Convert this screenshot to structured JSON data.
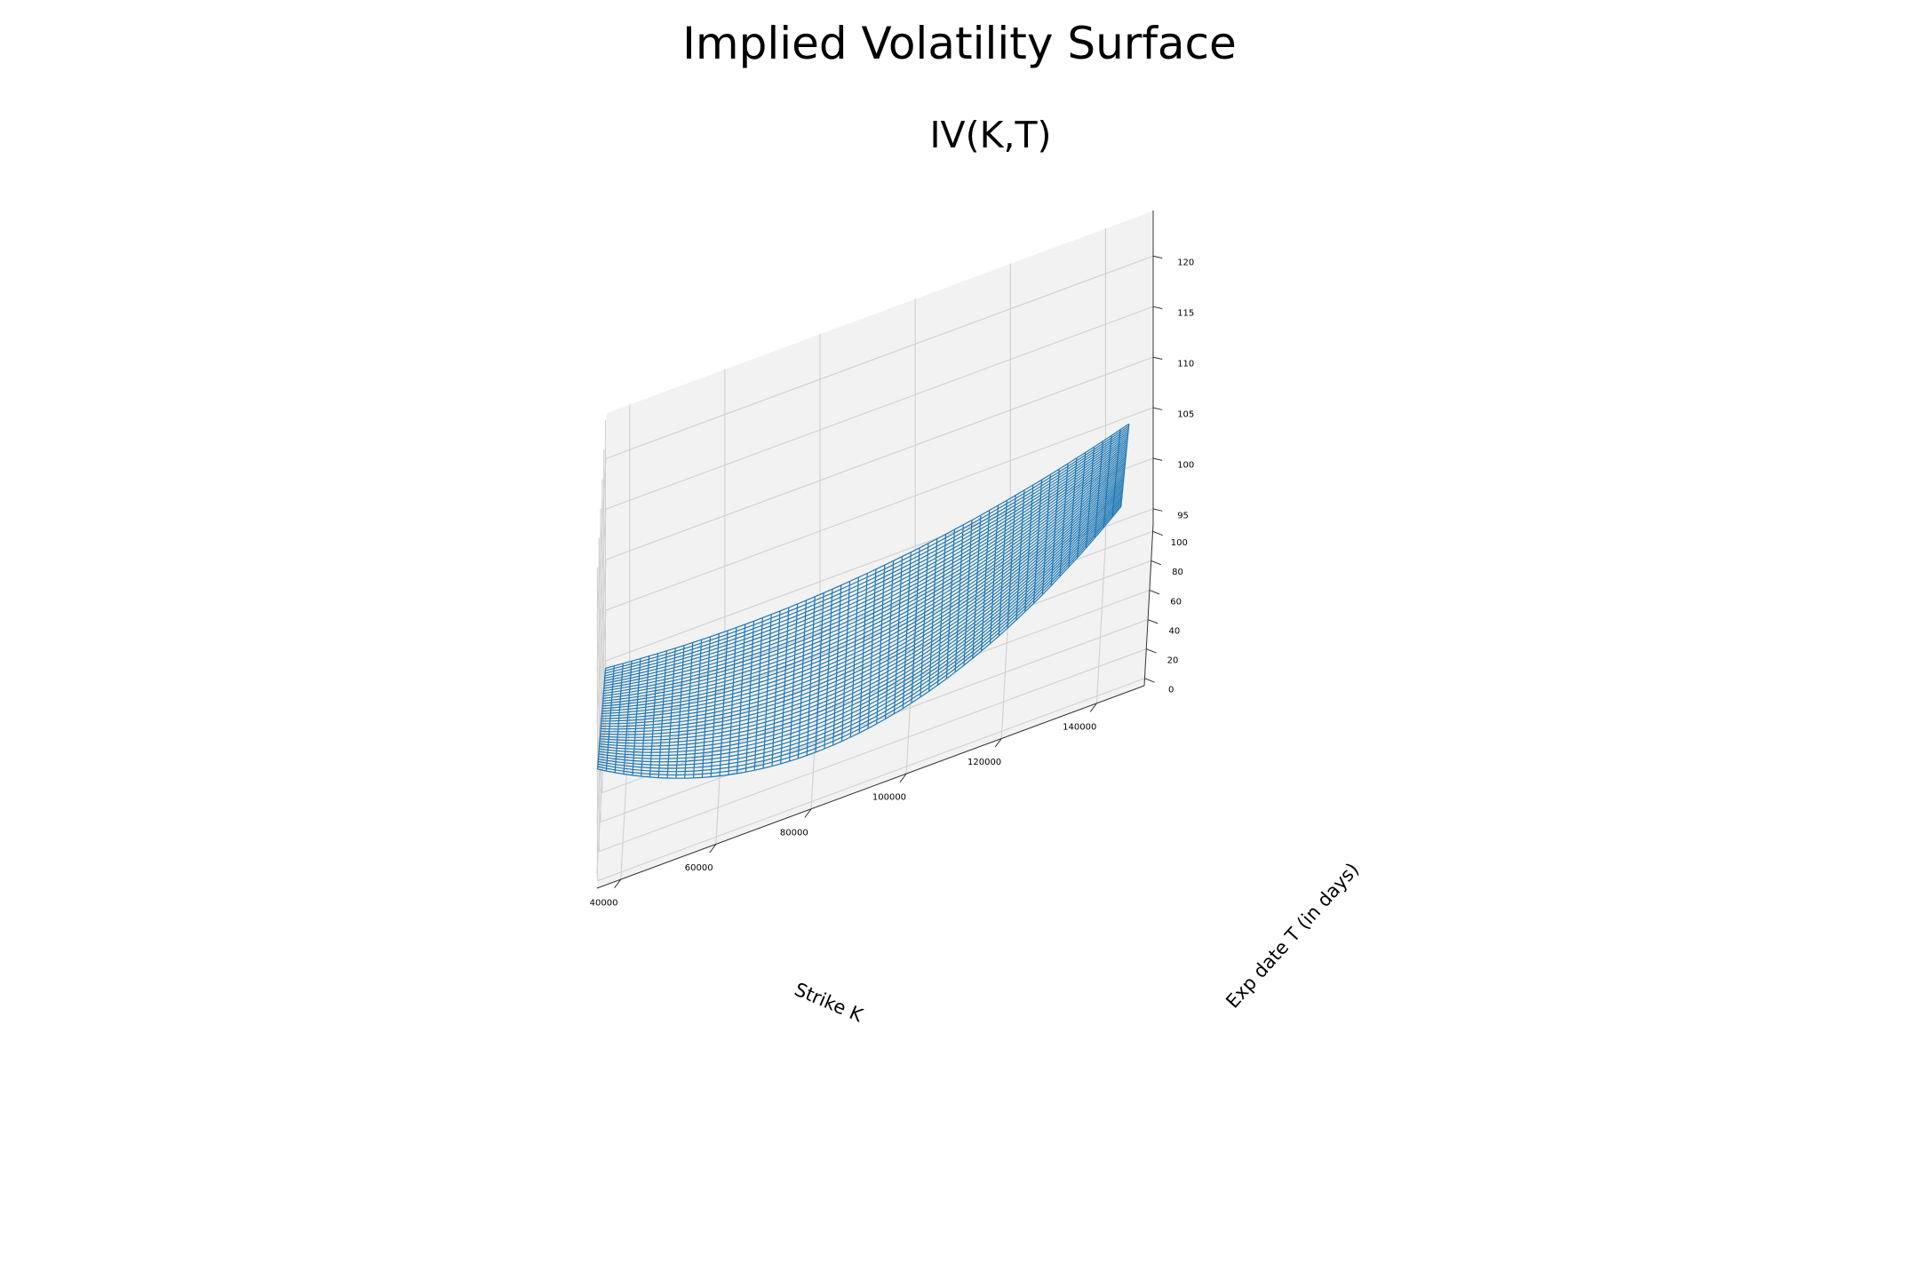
{
  "title": "Implied Volatility Surface",
  "chart_data": {
    "type": "surface",
    "title": "IV(K,T)",
    "xlabel": "Strike K",
    "ylabel": "Exp date T (in days)",
    "zlabel": "",
    "xlim": [
      35000,
      150000
    ],
    "ylim": [
      -5,
      105
    ],
    "zlim": [
      93.5,
      124.5
    ],
    "xticks": [
      "40000",
      "60000",
      "80000",
      "100000",
      "120000",
      "140000"
    ],
    "yticks": [
      "0",
      "20",
      "40",
      "60",
      "80",
      "100"
    ],
    "zticks": [
      "95",
      "100",
      "105",
      "110",
      "115",
      "120"
    ],
    "grid": true,
    "series": [
      {
        "style": "wireframe",
        "color": "#1f77b4",
        "x_range": [
          35000,
          145000
        ],
        "y_range": [
          1,
          100
        ],
        "samples": [
          {
            "x": 35000,
            "y": 1,
            "z": 104.4
          },
          {
            "x": 90000,
            "y": 1,
            "z": 98.4
          },
          {
            "x": 145000,
            "y": 1,
            "z": 111.2
          },
          {
            "x": 35000,
            "y": 100,
            "z": 100.0
          },
          {
            "x": 90000,
            "y": 100,
            "z": 99.8
          },
          {
            "x": 145000,
            "y": 100,
            "z": 105.0
          }
        ]
      }
    ]
  }
}
